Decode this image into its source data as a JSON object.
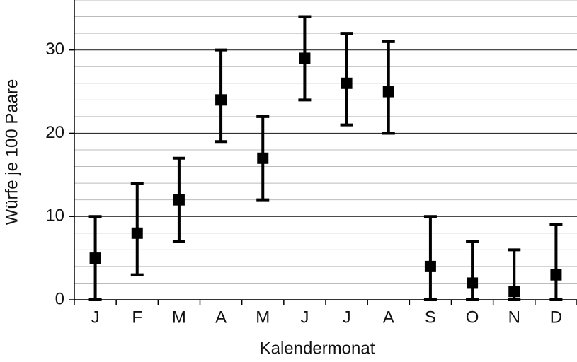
{
  "chart_data": {
    "type": "errorbar",
    "x_label": "Kalendermonat",
    "y_label": "Würfe je 100 Paare",
    "categories": [
      "J",
      "F",
      "M",
      "A",
      "M",
      "J",
      "J",
      "A",
      "S",
      "O",
      "N",
      "D"
    ],
    "values": [
      5,
      8,
      12,
      24,
      17,
      29,
      26,
      25,
      4,
      2,
      1,
      3
    ],
    "err_minus": [
      5,
      5,
      5,
      5,
      5,
      5,
      5,
      5,
      4,
      2,
      1,
      3
    ],
    "err_plus": [
      5,
      6,
      5,
      6,
      5,
      5,
      6,
      6,
      6,
      5,
      5,
      6
    ],
    "color": "#000000",
    "ylim": [
      0,
      36
    ],
    "yticks": [
      0,
      10,
      20,
      30
    ],
    "minor_yticks": [
      2,
      4,
      6,
      8,
      12,
      14,
      16,
      18,
      22,
      24,
      26,
      28,
      32,
      34,
      36
    ],
    "grid": true
  }
}
